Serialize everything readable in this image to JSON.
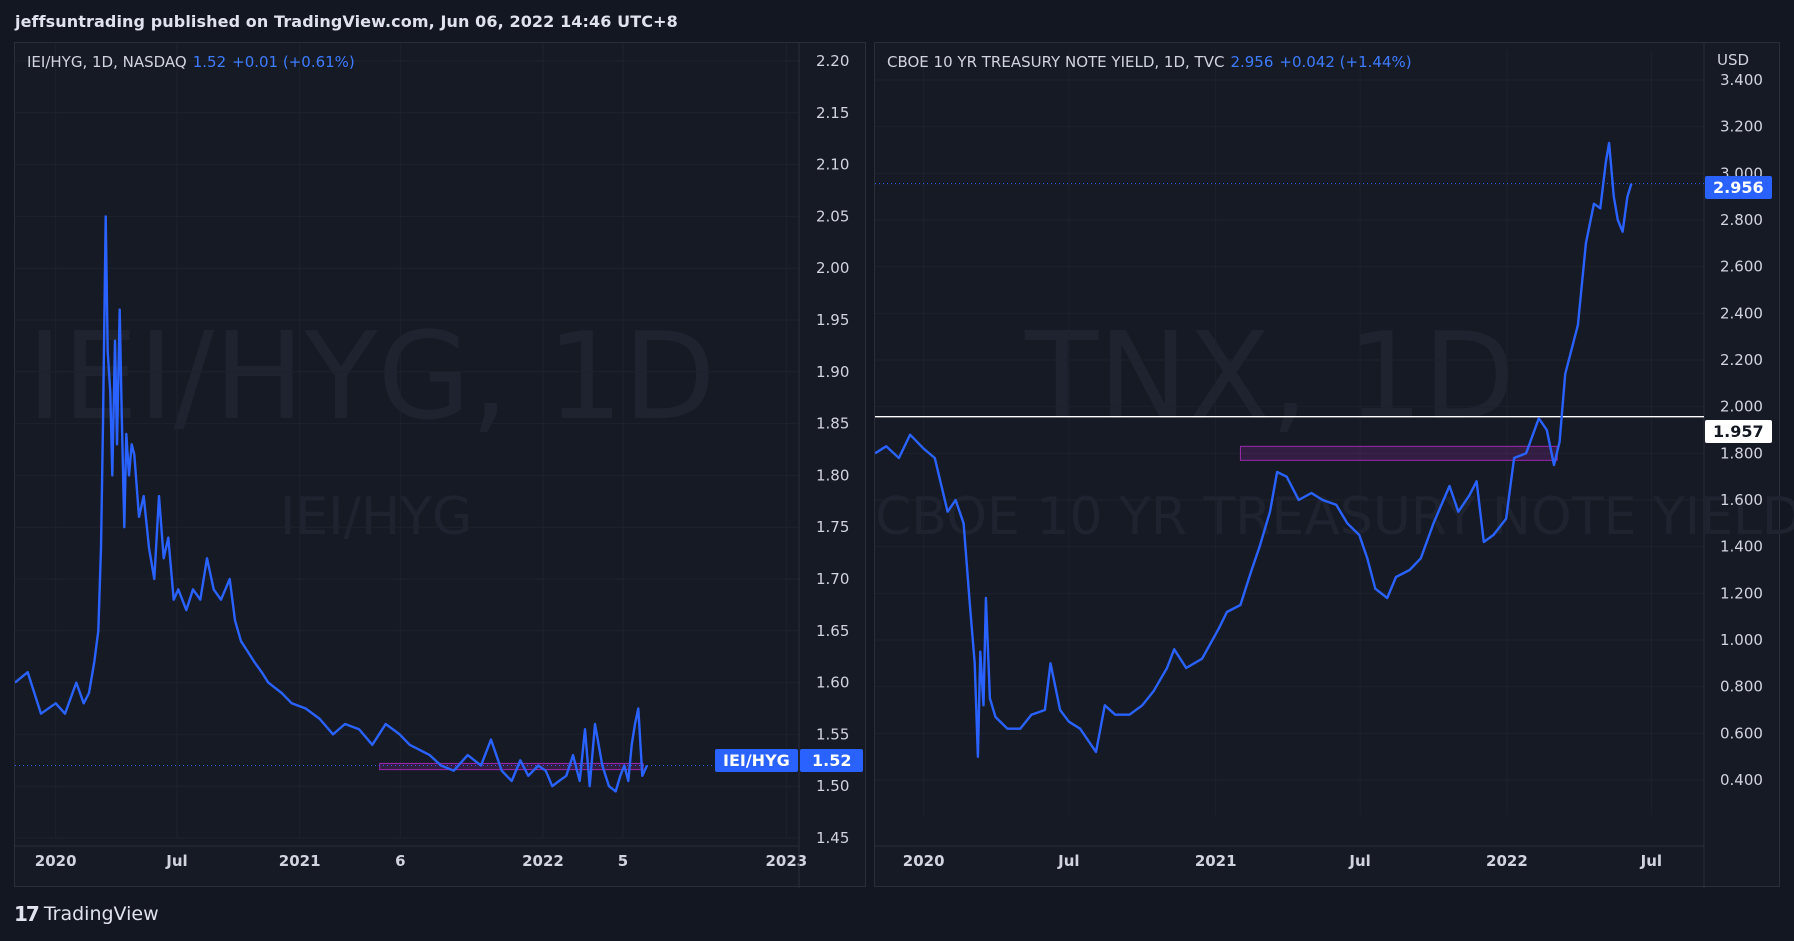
{
  "header": {
    "published_text": "jeffsuntrading published on TradingView.com, Jun 06, 2022 14:46 UTC+8"
  },
  "footer": {
    "logo_icon": "tradingview-logo-icon",
    "brand": "TradingView"
  },
  "colors": {
    "background": "#131722",
    "line": "#2962ff",
    "accent_text": "#3d7bff",
    "grid": "#1e222d",
    "box": "#9c27b0"
  },
  "left_chart": {
    "symbol": "IEI/HYG, 1D, NASDAQ",
    "last": "1.52",
    "change": "+0.01 (+0.61%)",
    "watermark_big": "IEI/HYG, 1D",
    "watermark_small": "IEI/HYG",
    "symbol_tag": "IEI/HYG",
    "price_tag": "1.52"
  },
  "right_chart": {
    "symbol": "CBOE 10 YR TREASURY NOTE YIELD, 1D, TVC",
    "last": "2.956",
    "change": "+0.042 (+1.44%)",
    "watermark_big": "TNX, 1D",
    "watermark_small": "CBOE 10 YR TREASURY NOTE YIELD",
    "currency": "USD",
    "price_tag": "2.956",
    "hline_tag": "1.957"
  },
  "chart_data": [
    {
      "type": "line",
      "title": "IEI/HYG, 1D, NASDAQ",
      "ylim": [
        1.45,
        2.2
      ],
      "yticks": [
        "1.45",
        "1.50",
        "1.55",
        "1.60",
        "1.65",
        "1.70",
        "1.75",
        "1.80",
        "1.85",
        "1.90",
        "1.95",
        "2.00",
        "2.05",
        "2.10",
        "2.15",
        "2.20"
      ],
      "xlim": [
        "2019-11-01",
        "2023-01-20"
      ],
      "xticks": [
        {
          "label": "2020",
          "date": "2020-01-01"
        },
        {
          "label": "Jul",
          "date": "2020-07-01"
        },
        {
          "label": "2021",
          "date": "2021-01-01"
        },
        {
          "label": "6",
          "date": "2021-06-01"
        },
        {
          "label": "2022",
          "date": "2022-01-01"
        },
        {
          "label": "5",
          "date": "2022-05-01"
        },
        {
          "label": "2023",
          "date": "2023-01-01"
        }
      ],
      "series": [
        {
          "dates": [
            "2019-11-01",
            "2019-11-20",
            "2019-12-10",
            "2020-01-01",
            "2020-01-15",
            "2020-02-01",
            "2020-02-12",
            "2020-02-20",
            "2020-02-28",
            "2020-03-05",
            "2020-03-09",
            "2020-03-12",
            "2020-03-16",
            "2020-03-19",
            "2020-03-23",
            "2020-03-26",
            "2020-03-30",
            "2020-04-02",
            "2020-04-06",
            "2020-04-09",
            "2020-04-13",
            "2020-04-16",
            "2020-04-20",
            "2020-04-24",
            "2020-04-28",
            "2020-05-05",
            "2020-05-12",
            "2020-05-20",
            "2020-05-28",
            "2020-06-04",
            "2020-06-11",
            "2020-06-18",
            "2020-06-26",
            "2020-07-03",
            "2020-07-15",
            "2020-07-25",
            "2020-08-05",
            "2020-08-15",
            "2020-08-25",
            "2020-09-05",
            "2020-09-18",
            "2020-09-26",
            "2020-10-05",
            "2020-10-15",
            "2020-10-25",
            "2020-11-05",
            "2020-11-15",
            "2020-11-25",
            "2020-12-05",
            "2020-12-20",
            "2021-01-10",
            "2021-01-31",
            "2021-02-20",
            "2021-03-10",
            "2021-03-31",
            "2021-04-20",
            "2021-05-10",
            "2021-05-31",
            "2021-06-15",
            "2021-06-30",
            "2021-07-15",
            "2021-08-01",
            "2021-08-20",
            "2021-09-10",
            "2021-09-30",
            "2021-10-15",
            "2021-10-31",
            "2021-11-15",
            "2021-11-28",
            "2021-12-10",
            "2021-12-25",
            "2022-01-05",
            "2022-01-15",
            "2022-01-25",
            "2022-02-05",
            "2022-02-15",
            "2022-02-25",
            "2022-03-05",
            "2022-03-12",
            "2022-03-20",
            "2022-03-31",
            "2022-04-10",
            "2022-04-20",
            "2022-04-27",
            "2022-05-03",
            "2022-05-09",
            "2022-05-14",
            "2022-05-19",
            "2022-05-24",
            "2022-05-30",
            "2022-06-06"
          ],
          "values": [
            1.6,
            1.61,
            1.57,
            1.58,
            1.57,
            1.6,
            1.58,
            1.59,
            1.62,
            1.65,
            1.73,
            1.85,
            2.05,
            1.92,
            1.88,
            1.8,
            1.93,
            1.83,
            1.96,
            1.86,
            1.75,
            1.84,
            1.8,
            1.83,
            1.82,
            1.76,
            1.78,
            1.73,
            1.7,
            1.78,
            1.72,
            1.74,
            1.68,
            1.69,
            1.67,
            1.69,
            1.68,
            1.72,
            1.69,
            1.68,
            1.7,
            1.66,
            1.64,
            1.63,
            1.62,
            1.61,
            1.6,
            1.595,
            1.59,
            1.58,
            1.575,
            1.565,
            1.55,
            1.56,
            1.555,
            1.54,
            1.56,
            1.55,
            1.54,
            1.535,
            1.53,
            1.52,
            1.515,
            1.53,
            1.52,
            1.545,
            1.515,
            1.505,
            1.525,
            1.51,
            1.52,
            1.515,
            1.5,
            1.505,
            1.51,
            1.53,
            1.505,
            1.555,
            1.5,
            1.56,
            1.52,
            1.5,
            1.495,
            1.51,
            1.52,
            1.505,
            1.54,
            1.56,
            1.575,
            1.51,
            1.52
          ]
        }
      ],
      "box": {
        "date_start": "2021-05-01",
        "date_end": "2022-05-31",
        "y_low": 1.516,
        "y_high": 1.522
      },
      "last_value": 1.52
    },
    {
      "type": "line",
      "title": "CBOE 10 YR TREASURY NOTE YIELD, 1D, TVC",
      "ylim": [
        0.25,
        3.4
      ],
      "yticks": [
        "0.400",
        "0.600",
        "0.800",
        "1.000",
        "1.200",
        "1.400",
        "1.600",
        "1.800",
        "2.000",
        "2.200",
        "2.400",
        "2.600",
        "2.800",
        "3.000",
        "3.200",
        "3.400"
      ],
      "xlim": [
        "2019-11-01",
        "2022-09-05"
      ],
      "xticks": [
        {
          "label": "2020",
          "date": "2020-01-01"
        },
        {
          "label": "Jul",
          "date": "2020-07-01"
        },
        {
          "label": "2021",
          "date": "2021-01-01"
        },
        {
          "label": "Jul",
          "date": "2021-07-01"
        },
        {
          "label": "2022",
          "date": "2022-01-01"
        },
        {
          "label": "Jul",
          "date": "2022-07-01"
        }
      ],
      "series": [
        {
          "dates": [
            "2019-11-01",
            "2019-11-15",
            "2019-12-01",
            "2019-12-15",
            "2020-01-01",
            "2020-01-15",
            "2020-01-31",
            "2020-02-10",
            "2020-02-20",
            "2020-02-28",
            "2020-03-05",
            "2020-03-09",
            "2020-03-12",
            "2020-03-16",
            "2020-03-19",
            "2020-03-24",
            "2020-03-31",
            "2020-04-15",
            "2020-05-01",
            "2020-05-15",
            "2020-06-01",
            "2020-06-08",
            "2020-06-20",
            "2020-07-01",
            "2020-07-15",
            "2020-08-04",
            "2020-08-15",
            "2020-08-28",
            "2020-09-15",
            "2020-10-01",
            "2020-10-15",
            "2020-11-01",
            "2020-11-10",
            "2020-11-25",
            "2020-12-15",
            "2021-01-05",
            "2021-01-15",
            "2021-02-01",
            "2021-02-15",
            "2021-02-25",
            "2021-03-10",
            "2021-03-19",
            "2021-03-31",
            "2021-04-15",
            "2021-05-01",
            "2021-05-15",
            "2021-06-01",
            "2021-06-15",
            "2021-06-30",
            "2021-07-10",
            "2021-07-20",
            "2021-08-04",
            "2021-08-15",
            "2021-09-01",
            "2021-09-15",
            "2021-10-01",
            "2021-10-21",
            "2021-11-01",
            "2021-11-15",
            "2021-11-24",
            "2021-12-03",
            "2021-12-15",
            "2021-12-31",
            "2022-01-10",
            "2022-01-25",
            "2022-02-10",
            "2022-02-20",
            "2022-03-01",
            "2022-03-08",
            "2022-03-15",
            "2022-03-31",
            "2022-04-10",
            "2022-04-20",
            "2022-04-28",
            "2022-05-05",
            "2022-05-09",
            "2022-05-15",
            "2022-05-20",
            "2022-05-26",
            "2022-06-01",
            "2022-06-06"
          ],
          "values": [
            1.8,
            1.83,
            1.78,
            1.88,
            1.82,
            1.78,
            1.55,
            1.6,
            1.5,
            1.15,
            0.9,
            0.5,
            0.95,
            0.72,
            1.18,
            0.75,
            0.67,
            0.62,
            0.62,
            0.68,
            0.7,
            0.9,
            0.7,
            0.65,
            0.62,
            0.52,
            0.72,
            0.68,
            0.68,
            0.72,
            0.78,
            0.88,
            0.96,
            0.88,
            0.92,
            1.05,
            1.12,
            1.15,
            1.3,
            1.4,
            1.55,
            1.72,
            1.7,
            1.6,
            1.63,
            1.6,
            1.58,
            1.5,
            1.45,
            1.35,
            1.22,
            1.18,
            1.27,
            1.3,
            1.35,
            1.5,
            1.66,
            1.55,
            1.62,
            1.68,
            1.42,
            1.45,
            1.52,
            1.78,
            1.8,
            1.95,
            1.9,
            1.75,
            1.85,
            2.14,
            2.35,
            2.7,
            2.87,
            2.85,
            3.05,
            3.13,
            2.9,
            2.8,
            2.75,
            2.9,
            2.956
          ]
        }
      ],
      "box": {
        "date_start": "2021-02-01",
        "date_end": "2022-03-05",
        "y_low": 1.77,
        "y_high": 1.83
      },
      "hline": 1.957,
      "last_value": 2.956
    }
  ]
}
